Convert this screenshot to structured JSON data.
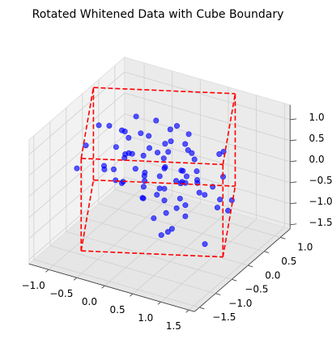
{
  "chart_data": {
    "type": "scatter3d",
    "title": "Rotated Whitened Data with Cube Boundary",
    "xlim": [
      -1.35,
      1.6
    ],
    "ylim": [
      -1.65,
      1.3
    ],
    "zlim": [
      -1.6,
      1.35
    ],
    "xticks": [
      {
        "value": -1.0,
        "label": "−1.0"
      },
      {
        "value": -0.5,
        "label": "−0.5"
      },
      {
        "value": 0.0,
        "label": "0.0"
      },
      {
        "value": 0.5,
        "label": "0.5"
      },
      {
        "value": 1.0,
        "label": "1.0"
      },
      {
        "value": 1.5,
        "label": "1.5"
      }
    ],
    "yticks": [
      {
        "value": -1.5,
        "label": "−1.5"
      },
      {
        "value": -1.0,
        "label": "−1.0"
      },
      {
        "value": -0.5,
        "label": "−0.5"
      },
      {
        "value": 0.0,
        "label": "0.0"
      },
      {
        "value": 0.5,
        "label": "0.5"
      },
      {
        "value": 1.0,
        "label": "1.0"
      }
    ],
    "zticks": [
      {
        "value": -1.5,
        "label": "−1.5"
      },
      {
        "value": -1.0,
        "label": "−1.0"
      },
      {
        "value": -0.5,
        "label": "−0.5"
      },
      {
        "value": 0.0,
        "label": "0.0"
      },
      {
        "value": 0.5,
        "label": "0.5"
      },
      {
        "value": 1.0,
        "label": "1.0"
      }
    ],
    "grid": true,
    "series": [
      {
        "color": "#0000ff",
        "x": [
          0.12,
          -0.85,
          0.64,
          -0.33,
          1.02,
          -0.71,
          0.25,
          0.88,
          -1.05,
          0.41,
          -0.18,
          0.73,
          -0.52,
          0.95,
          -0.9,
          0.08,
          0.56,
          -0.27,
          1.15,
          -0.64,
          0.31,
          -0.98,
          0.79,
          -0.12,
          0.47,
          -0.75,
          0.02,
          0.91,
          -0.44,
          0.67,
          -1.12,
          0.19,
          0.83,
          -0.36,
          0.58,
          -0.81,
          0.37,
          -0.05,
          1.08,
          -0.59,
          0.28,
          -0.93,
          0.72,
          -0.21,
          0.5,
          -0.68,
          0.14,
          0.99,
          -0.39,
          0.62,
          -1.0,
          0.23,
          0.86,
          -0.3,
          0.44,
          -0.77,
          0.06,
          0.94,
          -0.49,
          0.7,
          -0.87,
          0.33,
          -0.15,
          1.1,
          -0.56,
          0.21,
          -0.96,
          0.77,
          -0.08,
          0.53,
          -0.7,
          0.1,
          0.89,
          -0.42,
          0.6,
          -1.08,
          0.36,
          0.81,
          -0.24,
          0.48
        ],
        "y": [
          -0.62,
          0.35,
          0.91,
          -1.1,
          0.14,
          -0.28,
          0.77,
          -0.85,
          0.52,
          -0.4,
          1.05,
          -0.71,
          0.2,
          0.63,
          -0.95,
          0.44,
          -0.13,
          0.86,
          -0.55,
          0.08,
          -1.02,
          0.68,
          -0.33,
          0.97,
          -0.77,
          0.26,
          -0.49,
          0.58,
          -0.9,
          0.11,
          0.82,
          -0.6,
          0.39,
          -0.18,
          1.0,
          -0.83,
          0.55,
          -0.05,
          -0.66,
          0.73,
          -0.24,
          0.93,
          -1.15,
          0.3,
          -0.44,
          0.64,
          -0.7,
          0.17,
          0.89,
          -0.36,
          -0.1,
          0.48,
          -0.92,
          0.71,
          -0.57,
          0.02,
          0.84,
          -0.79,
          0.4,
          -0.29,
          0.6,
          -0.99,
          0.22,
          -0.47,
          0.95,
          -0.15,
          0.75,
          -0.64,
          0.33,
          -0.87,
          0.13,
          0.66,
          -0.42,
          0.9,
          -0.2,
          0.5,
          -1.05,
          0.28,
          0.79,
          -0.53
        ],
        "z": [
          0.45,
          -0.82,
          0.13,
          0.76,
          -0.35,
          1.02,
          -0.6,
          0.28,
          -0.15,
          0.91,
          -1.0,
          0.55,
          -0.25,
          -0.72,
          0.38,
          0.84,
          -0.48,
          0.06,
          -0.9,
          0.67,
          0.19,
          -0.4,
          0.98,
          -0.66,
          0.31,
          -0.12,
          0.73,
          -0.95,
          0.5,
          -0.3,
          0.02,
          1.05,
          -0.78,
          0.42,
          -0.55,
          0.88,
          -0.2,
          -1.08,
          0.6,
          0.15,
          -0.7,
          0.35,
          -0.45,
          0.95,
          -0.86,
          0.24,
          -0.1,
          0.7,
          -0.62,
          0.52,
          0.8,
          -0.33,
          0.09,
          -0.98,
          0.64,
          -0.5,
          0.37,
          -0.16,
          -0.8,
          0.99,
          -0.28,
          0.58,
          -0.74,
          0.2,
          -0.38,
          0.86,
          -0.05,
          0.46,
          -0.92,
          0.69,
          -0.58,
          0.27,
          0.93,
          -0.43,
          0.11,
          -0.68,
          0.75,
          -0.22,
          0.4,
          -0.88
        ]
      }
    ],
    "cube": {
      "color": "#ff0000",
      "x": [
        -0.53,
        1.46,
        -1.46,
        0.53,
        -0.53,
        1.46,
        -1.46,
        0.53
      ],
      "y": [
        -1.46,
        -0.53,
        0.53,
        1.46,
        -1.46,
        -0.53,
        0.53,
        1.46
      ],
      "z": [
        -1.1,
        -1.1,
        -1.1,
        -1.1,
        1.1,
        1.1,
        1.1,
        1.1
      ]
    }
  }
}
